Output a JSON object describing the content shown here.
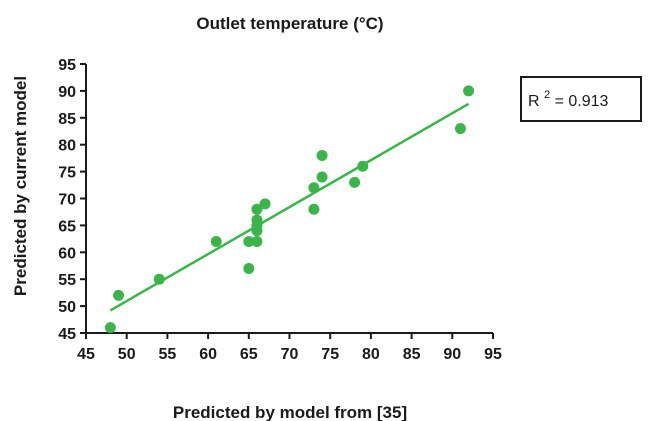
{
  "chart_data": {
    "type": "scatter",
    "title": "Outlet temperature (°C)",
    "xlabel": "Predicted by model from [35]",
    "ylabel": "Predicted by current model",
    "xlim": [
      45,
      95
    ],
    "ylim": [
      45,
      95
    ],
    "xticks": [
      45,
      50,
      55,
      60,
      65,
      70,
      75,
      80,
      85,
      90,
      95
    ],
    "yticks": [
      45,
      50,
      55,
      60,
      65,
      70,
      75,
      80,
      85,
      90,
      95
    ],
    "grid": false,
    "legend": "none",
    "point_color": "#3bb54a",
    "line_color": "#3bb54a",
    "points": [
      {
        "x": 48,
        "y": 46
      },
      {
        "x": 49,
        "y": 52
      },
      {
        "x": 54,
        "y": 55
      },
      {
        "x": 61,
        "y": 62
      },
      {
        "x": 65,
        "y": 57
      },
      {
        "x": 65,
        "y": 62
      },
      {
        "x": 66,
        "y": 62
      },
      {
        "x": 66,
        "y": 64
      },
      {
        "x": 66,
        "y": 65
      },
      {
        "x": 66,
        "y": 66
      },
      {
        "x": 66,
        "y": 68
      },
      {
        "x": 67,
        "y": 69
      },
      {
        "x": 73,
        "y": 68
      },
      {
        "x": 73,
        "y": 72
      },
      {
        "x": 74,
        "y": 74
      },
      {
        "x": 74,
        "y": 78
      },
      {
        "x": 78,
        "y": 73
      },
      {
        "x": 79,
        "y": 76
      },
      {
        "x": 91,
        "y": 83
      },
      {
        "x": 92,
        "y": 90
      }
    ],
    "fit_line": {
      "x": [
        48,
        92
      ],
      "y": [
        49.2,
        87.6
      ]
    },
    "annotation": {
      "prefix": "R",
      "superscript": "2",
      "suffix": "= 0.913"
    }
  }
}
